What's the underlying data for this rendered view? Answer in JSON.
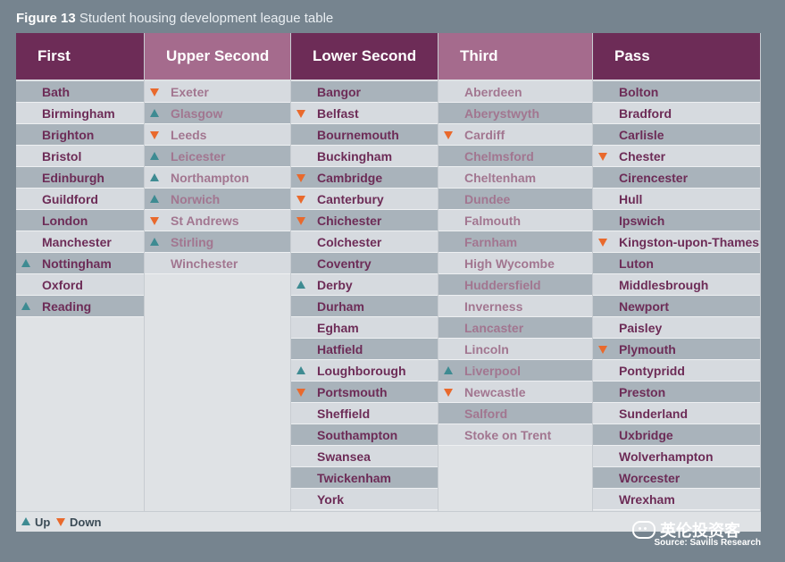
{
  "figure": {
    "label": "Figure 13",
    "title": "Student housing development league table"
  },
  "legend": {
    "up_label": "Up",
    "down_label": "Down"
  },
  "watermark": "英伦投资客",
  "source": "Source: Savills Research",
  "colors": {
    "header_first": "#6d2c57",
    "header_upper_second": "#a56b8d",
    "header_lower_second": "#6d2c57",
    "header_third": "#a56b8d",
    "header_pass": "#6d2c57",
    "text_dark": "#6d2c57",
    "text_light": "#a27690",
    "up_arrow": "#3e8b92",
    "down_arrow": "#e9692c"
  },
  "chart_data": {
    "type": "table",
    "title": "Student housing development league table",
    "columns": [
      {
        "name": "First",
        "rows": [
          {
            "name": "Bath",
            "trend": ""
          },
          {
            "name": "Birmingham",
            "trend": ""
          },
          {
            "name": "Brighton",
            "trend": ""
          },
          {
            "name": "Bristol",
            "trend": ""
          },
          {
            "name": "Edinburgh",
            "trend": ""
          },
          {
            "name": "Guildford",
            "trend": ""
          },
          {
            "name": "London",
            "trend": ""
          },
          {
            "name": "Manchester",
            "trend": ""
          },
          {
            "name": "Nottingham",
            "trend": "up"
          },
          {
            "name": "Oxford",
            "trend": ""
          },
          {
            "name": "Reading",
            "trend": "up"
          }
        ]
      },
      {
        "name": "Upper Second",
        "rows": [
          {
            "name": "Exeter",
            "trend": "down"
          },
          {
            "name": "Glasgow",
            "trend": "up"
          },
          {
            "name": "Leeds",
            "trend": "down"
          },
          {
            "name": "Leicester",
            "trend": "up"
          },
          {
            "name": "Northampton",
            "trend": "up"
          },
          {
            "name": "Norwich",
            "trend": "up"
          },
          {
            "name": "St Andrews",
            "trend": "down"
          },
          {
            "name": "Stirling",
            "trend": "up"
          },
          {
            "name": "Winchester",
            "trend": ""
          }
        ]
      },
      {
        "name": "Lower Second",
        "rows": [
          {
            "name": "Bangor",
            "trend": ""
          },
          {
            "name": "Belfast",
            "trend": "down"
          },
          {
            "name": "Bournemouth",
            "trend": ""
          },
          {
            "name": "Buckingham",
            "trend": ""
          },
          {
            "name": "Cambridge",
            "trend": "down"
          },
          {
            "name": "Canterbury",
            "trend": "down"
          },
          {
            "name": "Chichester",
            "trend": "down"
          },
          {
            "name": "Colchester",
            "trend": ""
          },
          {
            "name": "Coventry",
            "trend": ""
          },
          {
            "name": "Derby",
            "trend": "up"
          },
          {
            "name": "Durham",
            "trend": ""
          },
          {
            "name": "Egham",
            "trend": ""
          },
          {
            "name": "Hatfield",
            "trend": ""
          },
          {
            "name": "Loughborough",
            "trend": "up"
          },
          {
            "name": "Portsmouth",
            "trend": "down"
          },
          {
            "name": "Sheffield",
            "trend": ""
          },
          {
            "name": "Southampton",
            "trend": ""
          },
          {
            "name": "Swansea",
            "trend": ""
          },
          {
            "name": "Twickenham",
            "trend": ""
          },
          {
            "name": "York",
            "trend": ""
          }
        ]
      },
      {
        "name": "Third",
        "rows": [
          {
            "name": "Aberdeen",
            "trend": ""
          },
          {
            "name": "Aberystwyth",
            "trend": ""
          },
          {
            "name": "Cardiff",
            "trend": "down"
          },
          {
            "name": "Chelmsford",
            "trend": ""
          },
          {
            "name": "Cheltenham",
            "trend": ""
          },
          {
            "name": "Dundee",
            "trend": ""
          },
          {
            "name": "Falmouth",
            "trend": ""
          },
          {
            "name": "Farnham",
            "trend": ""
          },
          {
            "name": "High Wycombe",
            "trend": ""
          },
          {
            "name": "Huddersfield",
            "trend": ""
          },
          {
            "name": "Inverness",
            "trend": ""
          },
          {
            "name": "Lancaster",
            "trend": ""
          },
          {
            "name": "Lincoln",
            "trend": ""
          },
          {
            "name": "Liverpool",
            "trend": "up"
          },
          {
            "name": "Newcastle",
            "trend": "down"
          },
          {
            "name": "Salford",
            "trend": ""
          },
          {
            "name": "Stoke on Trent",
            "trend": ""
          }
        ]
      },
      {
        "name": "Pass",
        "rows": [
          {
            "name": "Bolton",
            "trend": ""
          },
          {
            "name": "Bradford",
            "trend": ""
          },
          {
            "name": "Carlisle",
            "trend": ""
          },
          {
            "name": "Chester",
            "trend": "down"
          },
          {
            "name": "Cirencester",
            "trend": ""
          },
          {
            "name": "Hull",
            "trend": ""
          },
          {
            "name": "Ipswich",
            "trend": ""
          },
          {
            "name": "Kingston-upon-Thames",
            "trend": "down"
          },
          {
            "name": "Luton",
            "trend": ""
          },
          {
            "name": "Middlesbrough",
            "trend": ""
          },
          {
            "name": "Newport",
            "trend": ""
          },
          {
            "name": "Paisley",
            "trend": ""
          },
          {
            "name": "Plymouth",
            "trend": "down"
          },
          {
            "name": "Pontypridd",
            "trend": ""
          },
          {
            "name": "Preston",
            "trend": ""
          },
          {
            "name": "Sunderland",
            "trend": ""
          },
          {
            "name": "Uxbridge",
            "trend": ""
          },
          {
            "name": "Wolverhampton",
            "trend": ""
          },
          {
            "name": "Worcester",
            "trend": ""
          },
          {
            "name": "Wrexham",
            "trend": ""
          }
        ]
      }
    ]
  }
}
